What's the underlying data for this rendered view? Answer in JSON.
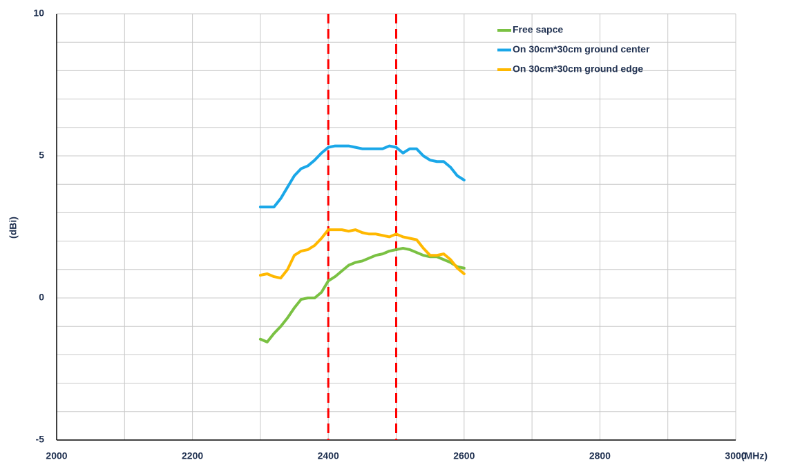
{
  "chart_data": {
    "type": "line",
    "x_label": "(MHz)",
    "y_label": "(dBi)",
    "x": [
      2300,
      2310,
      2320,
      2330,
      2340,
      2350,
      2360,
      2370,
      2380,
      2390,
      2400,
      2410,
      2420,
      2430,
      2440,
      2450,
      2460,
      2470,
      2480,
      2490,
      2500,
      2510,
      2520,
      2530,
      2540,
      2550,
      2560,
      2570,
      2580,
      2590,
      2600
    ],
    "series": [
      {
        "name": "Free sapce",
        "color": "#7ac143",
        "values": [
          -1.45,
          -1.55,
          -1.25,
          -1.0,
          -0.7,
          -0.35,
          -0.05,
          0.0,
          0.0,
          0.2,
          0.6,
          0.75,
          0.95,
          1.15,
          1.25,
          1.3,
          1.4,
          1.5,
          1.55,
          1.65,
          1.7,
          1.75,
          1.7,
          1.6,
          1.5,
          1.45,
          1.45,
          1.35,
          1.25,
          1.1,
          1.05
        ]
      },
      {
        "name": "On 30cm*30cm ground center",
        "color": "#1aa7e8",
        "values": [
          3.2,
          3.2,
          3.2,
          3.5,
          3.9,
          4.3,
          4.55,
          4.65,
          4.85,
          5.1,
          5.3,
          5.35,
          5.35,
          5.35,
          5.3,
          5.25,
          5.25,
          5.25,
          5.25,
          5.35,
          5.3,
          5.1,
          5.25,
          5.25,
          5.0,
          4.85,
          4.8,
          4.8,
          4.6,
          4.3,
          4.15
        ]
      },
      {
        "name": "On 30cm*30cm ground edge",
        "color": "#ffb800",
        "values": [
          0.8,
          0.85,
          0.75,
          0.7,
          1.0,
          1.5,
          1.65,
          1.7,
          1.85,
          2.1,
          2.4,
          2.4,
          2.4,
          2.35,
          2.4,
          2.3,
          2.25,
          2.25,
          2.2,
          2.15,
          2.25,
          2.15,
          2.1,
          2.05,
          1.75,
          1.5,
          1.5,
          1.55,
          1.35,
          1.05,
          0.85
        ]
      }
    ],
    "xlim": [
      2000,
      3000
    ],
    "xticks": [
      2000,
      2200,
      2400,
      2600,
      2800,
      3000
    ],
    "x_minor_ticks": [
      2100,
      2300,
      2500,
      2700,
      2900
    ],
    "ylim": [
      -5,
      10
    ],
    "yticks": [
      -5,
      0,
      5,
      10
    ],
    "y_minor_ticks": [
      -4,
      -3,
      -2,
      -1,
      1,
      2,
      3,
      4,
      6,
      7,
      8,
      9
    ],
    "grid": true,
    "legend": "upper right",
    "vlines": [
      2400,
      2500
    ],
    "vline_color": "#ff0000"
  }
}
